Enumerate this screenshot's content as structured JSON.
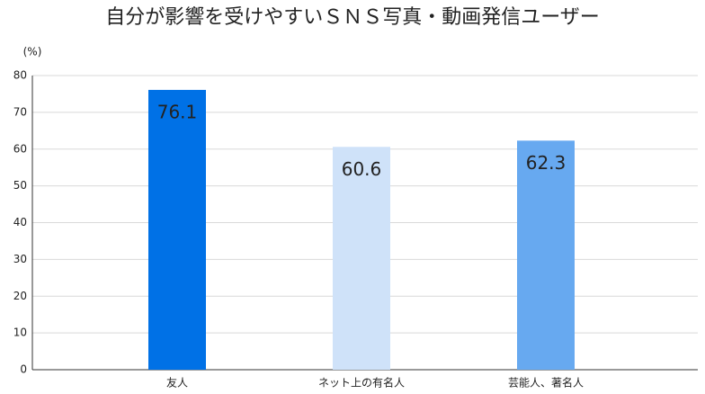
{
  "chart_data": {
    "type": "bar",
    "title": "自分が影響を受けやすいＳＮＳ写真・動画発信ユーザー",
    "y_unit": "(%)",
    "categories": [
      "友人",
      "ネット上の有名人",
      "芸能人、著名人"
    ],
    "values": [
      76.1,
      60.6,
      62.3
    ],
    "colors": [
      "#0071e6",
      "#cfe2f9",
      "#67a9f0"
    ],
    "value_label_colors": [
      "#ffffff",
      "#1a7ee6",
      "#ffffff"
    ],
    "ylim": [
      0,
      80
    ],
    "yticks": [
      0,
      10,
      20,
      30,
      40,
      50,
      60,
      70,
      80
    ],
    "grid": true
  }
}
